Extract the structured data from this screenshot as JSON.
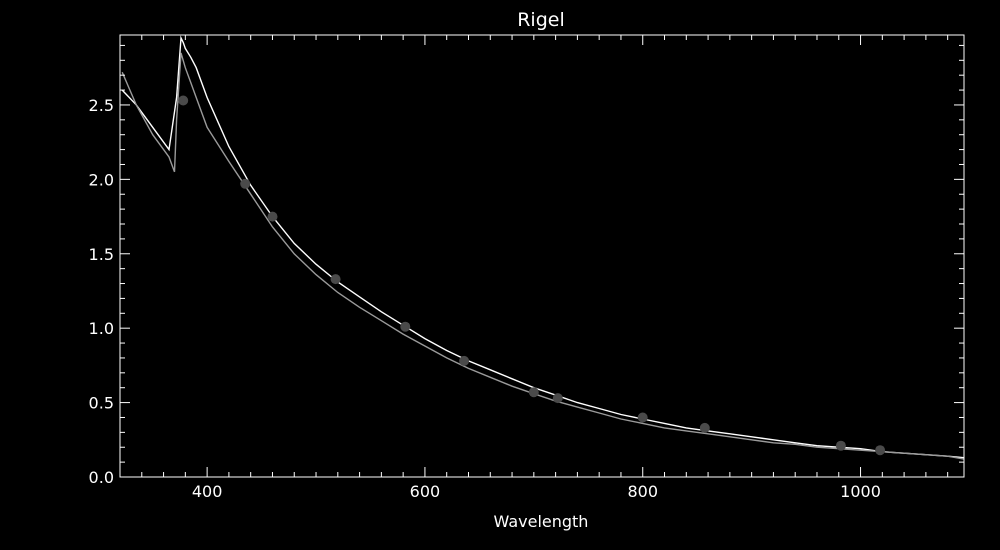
{
  "chart_data": {
    "type": "line",
    "title": "Rigel",
    "xlabel": "Wavelength",
    "ylabel": "",
    "xlim": [
      320,
      1095
    ],
    "ylim": [
      0,
      2.97
    ],
    "x_ticks": [
      400,
      600,
      800,
      1000
    ],
    "x_tick_labels": [
      "400",
      "600",
      "800",
      "1000"
    ],
    "y_ticks": [
      0,
      0.5,
      1.0,
      1.5,
      2.0,
      2.5
    ],
    "y_tick_labels": [
      "0.0",
      "0.5",
      "1.0",
      "1.5",
      "2.0",
      "2.5"
    ],
    "grid": false,
    "colors": {
      "background": "#000000",
      "frame": "#ffffff",
      "series_white": "#ffffff",
      "series_gray": "#9a9a9a",
      "points": "#4a4a4a"
    },
    "series": [
      {
        "color": "white",
        "x": [
          322,
          335,
          350,
          365,
          372,
          376,
          378,
          380,
          385,
          390,
          400,
          420,
          440,
          460,
          480,
          500,
          520,
          540,
          560,
          580,
          600,
          620,
          640,
          660,
          680,
          700,
          720,
          740,
          760,
          780,
          800,
          820,
          840,
          860,
          880,
          900,
          920,
          940,
          960,
          980,
          1000,
          1020,
          1040,
          1060,
          1080,
          1095
        ],
        "y": [
          2.6,
          2.5,
          2.35,
          2.2,
          2.55,
          2.95,
          2.92,
          2.88,
          2.82,
          2.75,
          2.55,
          2.22,
          1.96,
          1.75,
          1.57,
          1.43,
          1.31,
          1.21,
          1.11,
          1.02,
          0.93,
          0.85,
          0.78,
          0.72,
          0.66,
          0.6,
          0.55,
          0.5,
          0.46,
          0.42,
          0.39,
          0.36,
          0.33,
          0.31,
          0.29,
          0.27,
          0.25,
          0.23,
          0.21,
          0.2,
          0.19,
          0.17,
          0.16,
          0.15,
          0.14,
          0.13
        ]
      },
      {
        "color": "gray",
        "x": [
          322,
          335,
          350,
          365,
          370,
          372,
          376,
          380,
          385,
          390,
          400,
          420,
          440,
          460,
          480,
          500,
          520,
          540,
          560,
          580,
          600,
          620,
          640,
          660,
          680,
          700,
          720,
          740,
          760,
          780,
          800,
          820,
          840,
          860,
          880,
          900,
          920,
          940,
          960,
          980,
          1000,
          1020,
          1040,
          1060,
          1080,
          1095
        ],
        "y": [
          2.72,
          2.5,
          2.3,
          2.15,
          2.05,
          2.4,
          2.85,
          2.75,
          2.65,
          2.55,
          2.35,
          2.12,
          1.9,
          1.68,
          1.5,
          1.36,
          1.24,
          1.14,
          1.05,
          0.96,
          0.88,
          0.8,
          0.73,
          0.67,
          0.61,
          0.56,
          0.51,
          0.47,
          0.43,
          0.39,
          0.36,
          0.33,
          0.31,
          0.29,
          0.27,
          0.25,
          0.23,
          0.22,
          0.2,
          0.19,
          0.18,
          0.17,
          0.16,
          0.15,
          0.14,
          0.12
        ]
      }
    ],
    "points": {
      "x": [
        378,
        435,
        460,
        518,
        582,
        636,
        700,
        722,
        800,
        857,
        982,
        1018
      ],
      "y": [
        2.53,
        1.97,
        1.75,
        1.33,
        1.01,
        0.78,
        0.57,
        0.53,
        0.4,
        0.33,
        0.21,
        0.18
      ]
    }
  }
}
